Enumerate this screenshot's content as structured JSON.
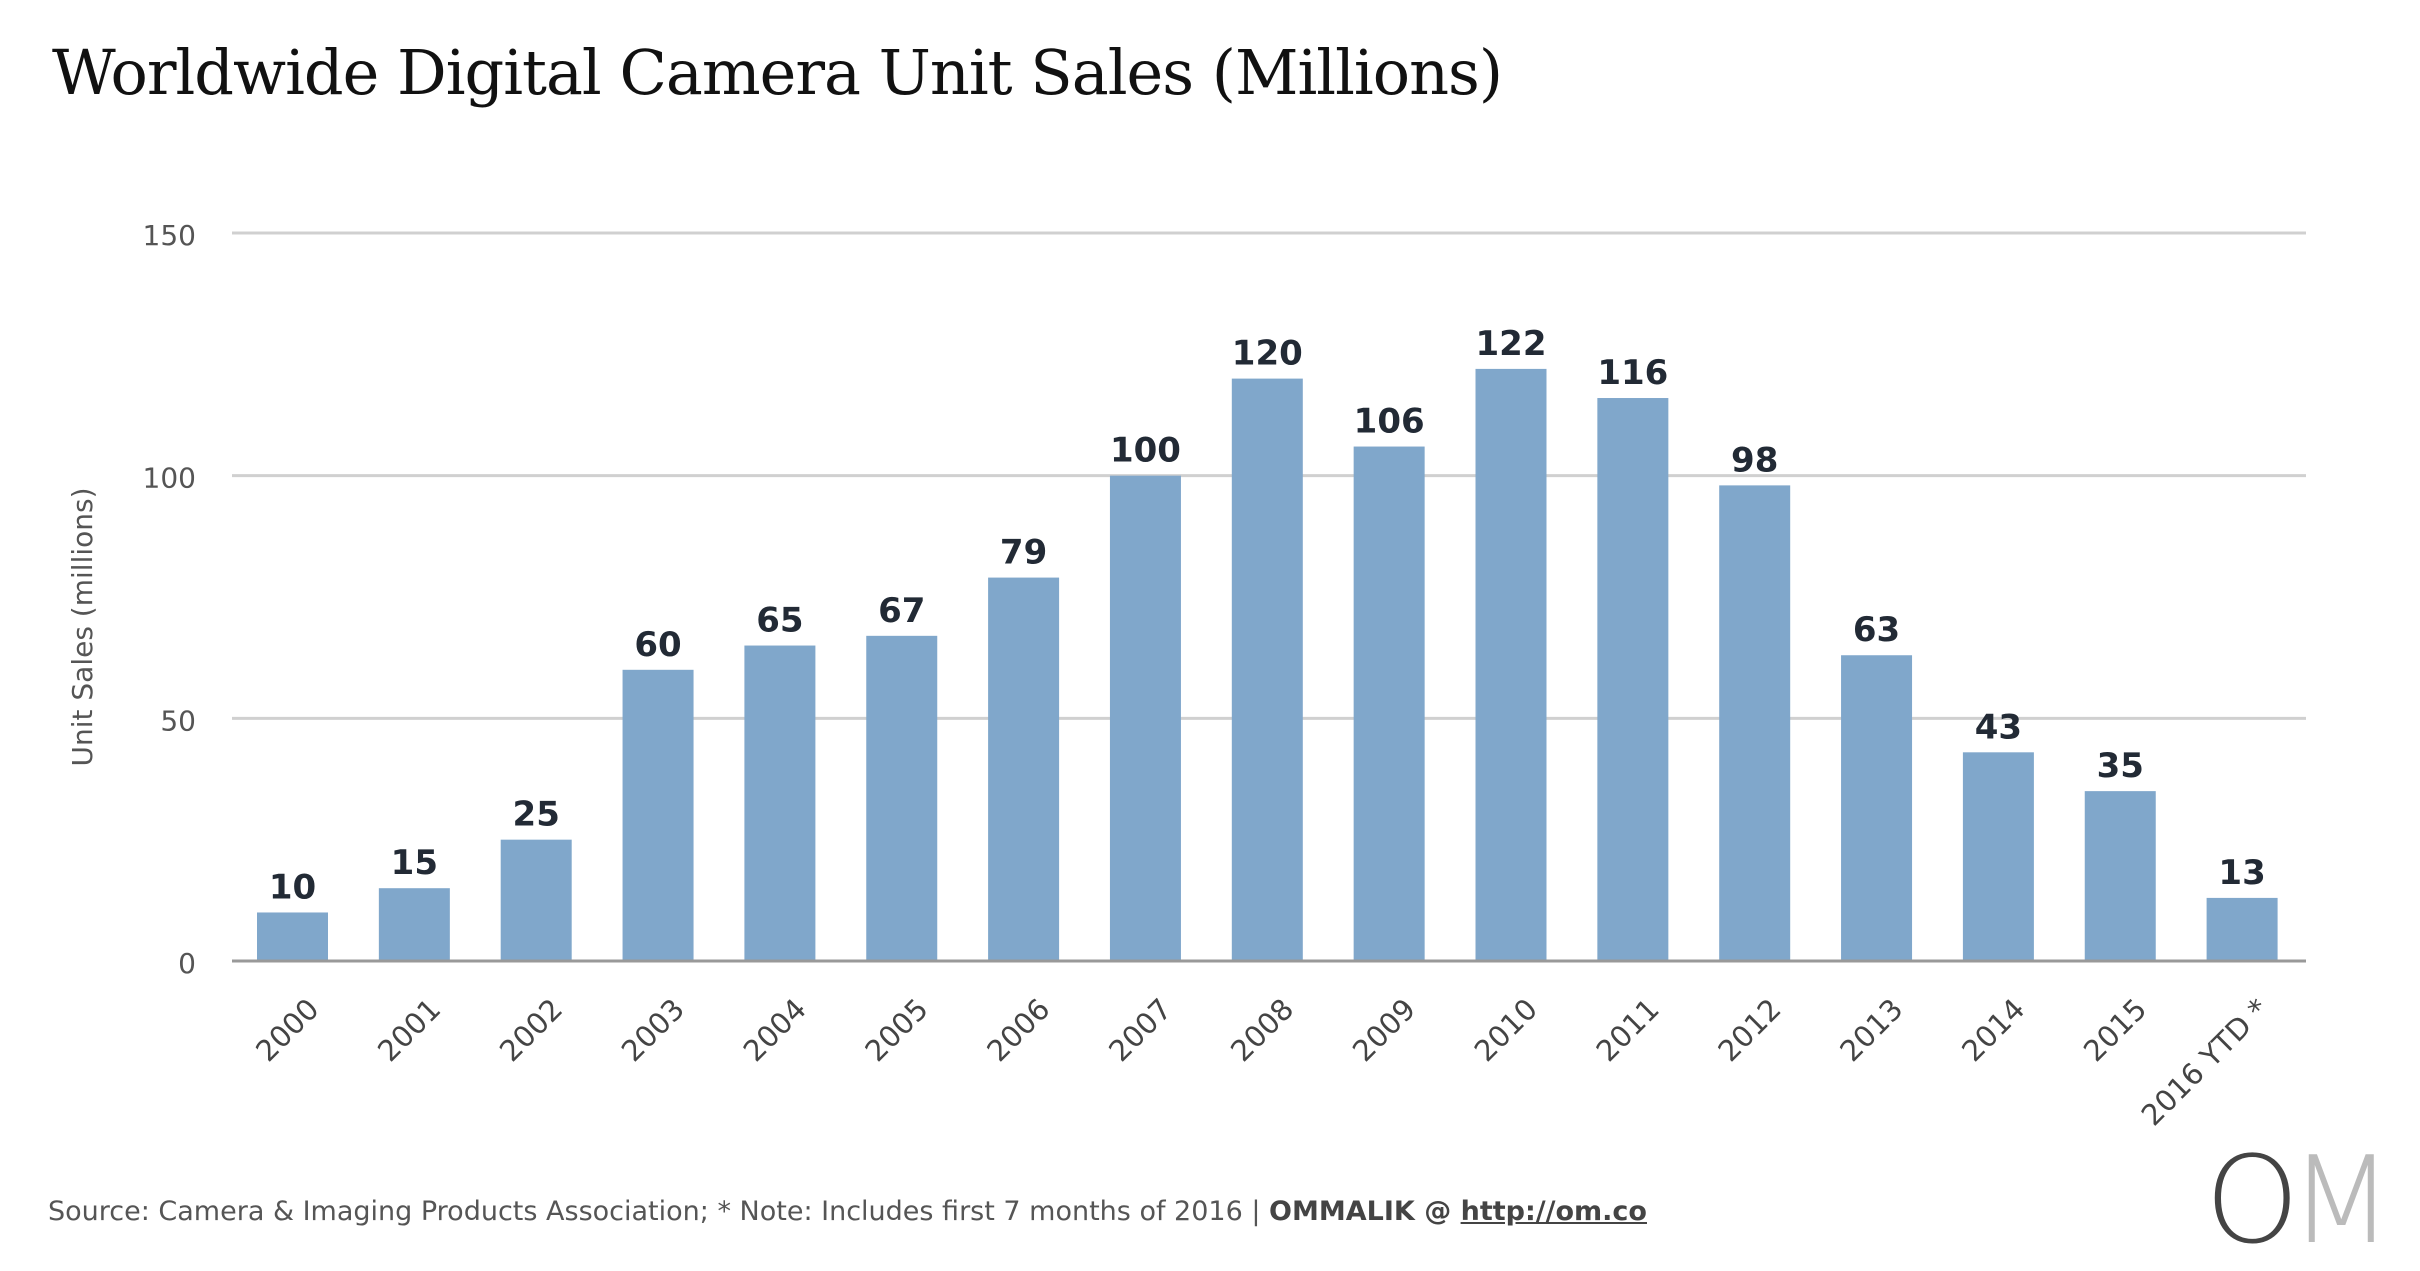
{
  "chart_data": {
    "type": "bar",
    "title": "Worldwide Digital Camera Unit Sales (Millions)",
    "ylabel": "Unit Sales (millions)",
    "xlabel": "",
    "ylim": [
      0,
      150
    ],
    "yticks": [
      "0",
      "50",
      "100",
      "150"
    ],
    "grid": true,
    "bar_color": "#80a7cb",
    "categories": [
      "2000",
      "2001",
      "2002",
      "2003",
      "2004",
      "2005",
      "2006",
      "2007",
      "2008",
      "2009",
      "2010",
      "2011",
      "2012",
      "2013",
      "2014",
      "2015",
      "2016 YTD *"
    ],
    "values": [
      10,
      15,
      25,
      60,
      65,
      67,
      79,
      100,
      120,
      106,
      122,
      116,
      98,
      63,
      43,
      35,
      13
    ]
  },
  "footer": {
    "source": "Source: Camera & Imaging Products Association; * Note: Includes first 7 months of 2016  |  ",
    "brand": "OMMALIK @ ",
    "link": "http://om.co"
  },
  "logo": {
    "o": "O",
    "m": "M"
  }
}
